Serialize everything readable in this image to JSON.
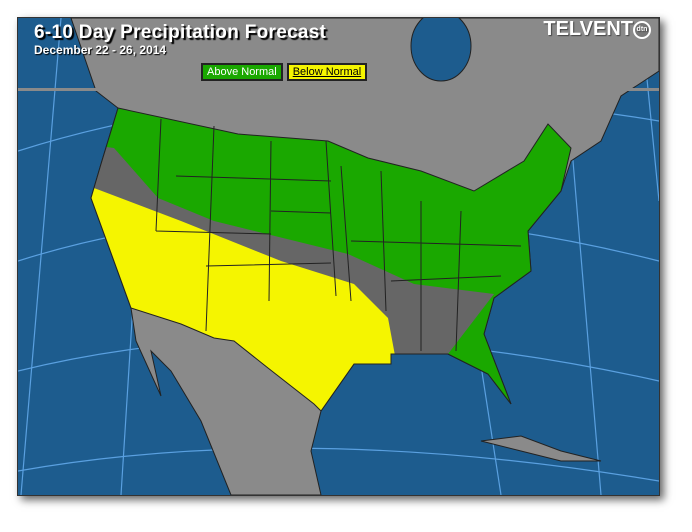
{
  "header": {
    "title": "6-10 Day Precipitation Forecast",
    "date_range": "December 22 - 26, 2014",
    "logo": "TELVENT",
    "logo_badge": "dtn"
  },
  "legend": {
    "items": [
      {
        "label": "Above Normal",
        "color": "#1aa800"
      },
      {
        "label": "Below Normal",
        "color": "#f5f500"
      }
    ]
  },
  "colors": {
    "ocean": "#1d5c8e",
    "land": "#8a8a8a",
    "us_normal": "#666666",
    "above": "#1aa800",
    "below": "#f5f500"
  }
}
